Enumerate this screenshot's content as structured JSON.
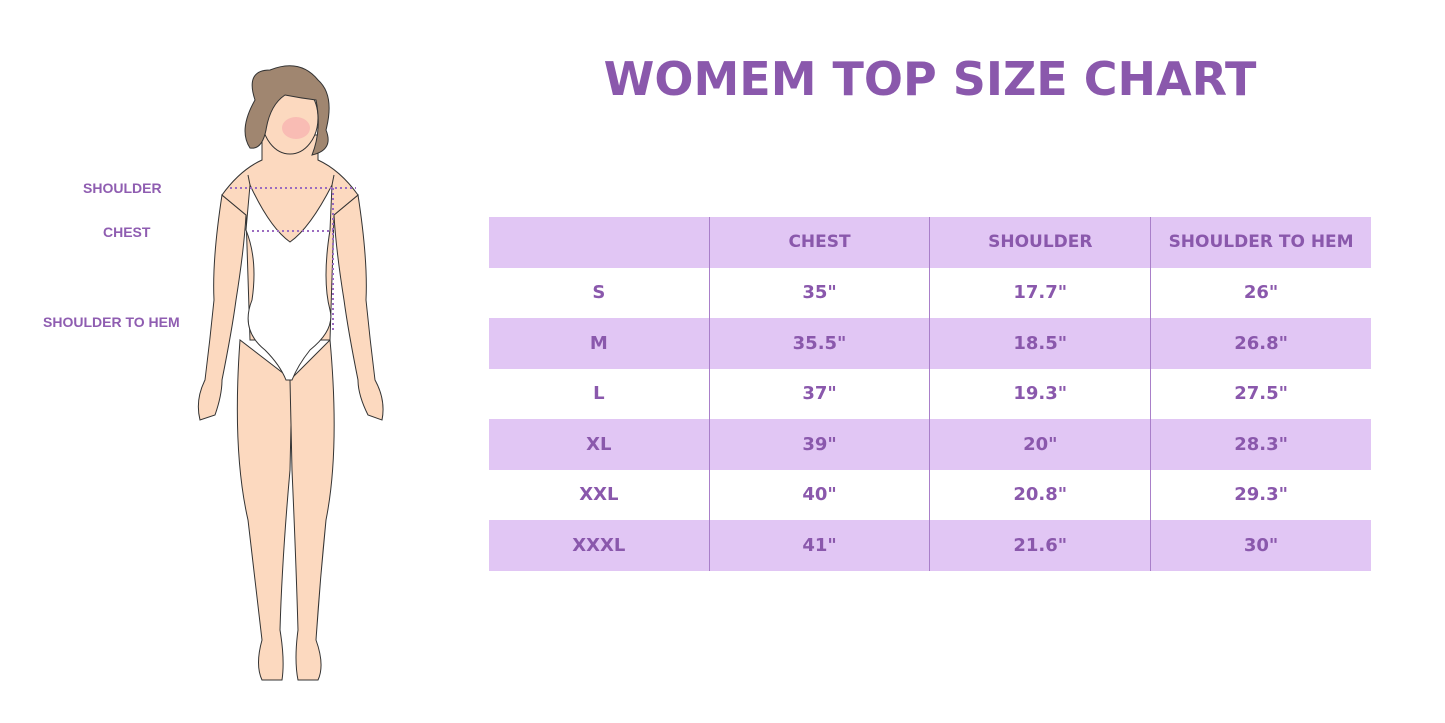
{
  "title": "WOMEM TOP SIZE CHART",
  "figure_labels": {
    "shoulder": "SHOULDER",
    "chest": "CHEST",
    "shoulder_to_hem": "SHOULDER TO HEM"
  },
  "colors": {
    "accent": "#8a58ac",
    "row_fill": "#e1c6f4",
    "skin": "#fcd9bf",
    "hair": "#a08670"
  },
  "table": {
    "headers": [
      "",
      "CHEST",
      "SHOULDER",
      "SHOULDER TO HEM"
    ],
    "rows": [
      [
        "S",
        "35\"",
        "17.7\"",
        "26\""
      ],
      [
        "M",
        "35.5\"",
        "18.5\"",
        "26.8\""
      ],
      [
        "L",
        "37\"",
        "19.3\"",
        "27.5\""
      ],
      [
        "XL",
        "39\"",
        "20\"",
        "28.3\""
      ],
      [
        "XXL",
        "40\"",
        "20.8\"",
        "29.3\""
      ],
      [
        "XXXL",
        "41\"",
        "21.6\"",
        "30\""
      ]
    ]
  }
}
